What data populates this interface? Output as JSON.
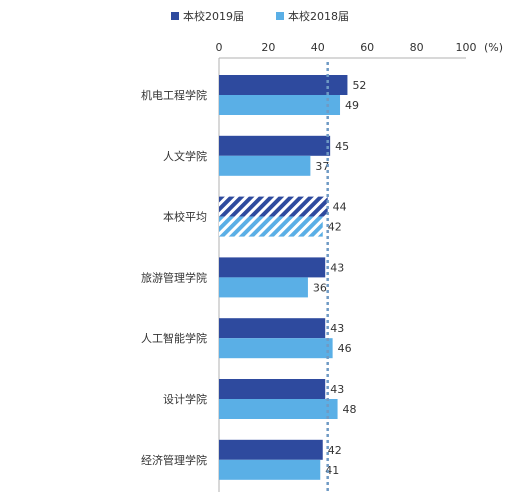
{
  "chart_data": {
    "type": "bar",
    "orientation": "horizontal",
    "categories": [
      "机电工程学院",
      "人文学院",
      "本校平均",
      "旅游管理学院",
      "人工智能学院",
      "设计学院",
      "经济管理学院"
    ],
    "series": [
      {
        "name": "本校2019届",
        "values": [
          52,
          45,
          44,
          43,
          43,
          43,
          42
        ]
      },
      {
        "name": "本校2018届",
        "values": [
          49,
          37,
          42,
          36,
          46,
          48,
          41
        ]
      }
    ],
    "hatched_category": "本校平均",
    "reference_line_value": 44,
    "xlim": [
      0,
      100
    ],
    "x_ticks": [
      "0",
      "20",
      "40",
      "60",
      "80",
      "100"
    ],
    "unit_label": "(%)",
    "legend_position": "top",
    "grid": false,
    "colors": {
      "series_2019": "#2e4a9e",
      "series_2018": "#5aafe6",
      "reference_line": "#6f9ac4",
      "axis": "#b0b0b0",
      "text": "#333333"
    }
  }
}
